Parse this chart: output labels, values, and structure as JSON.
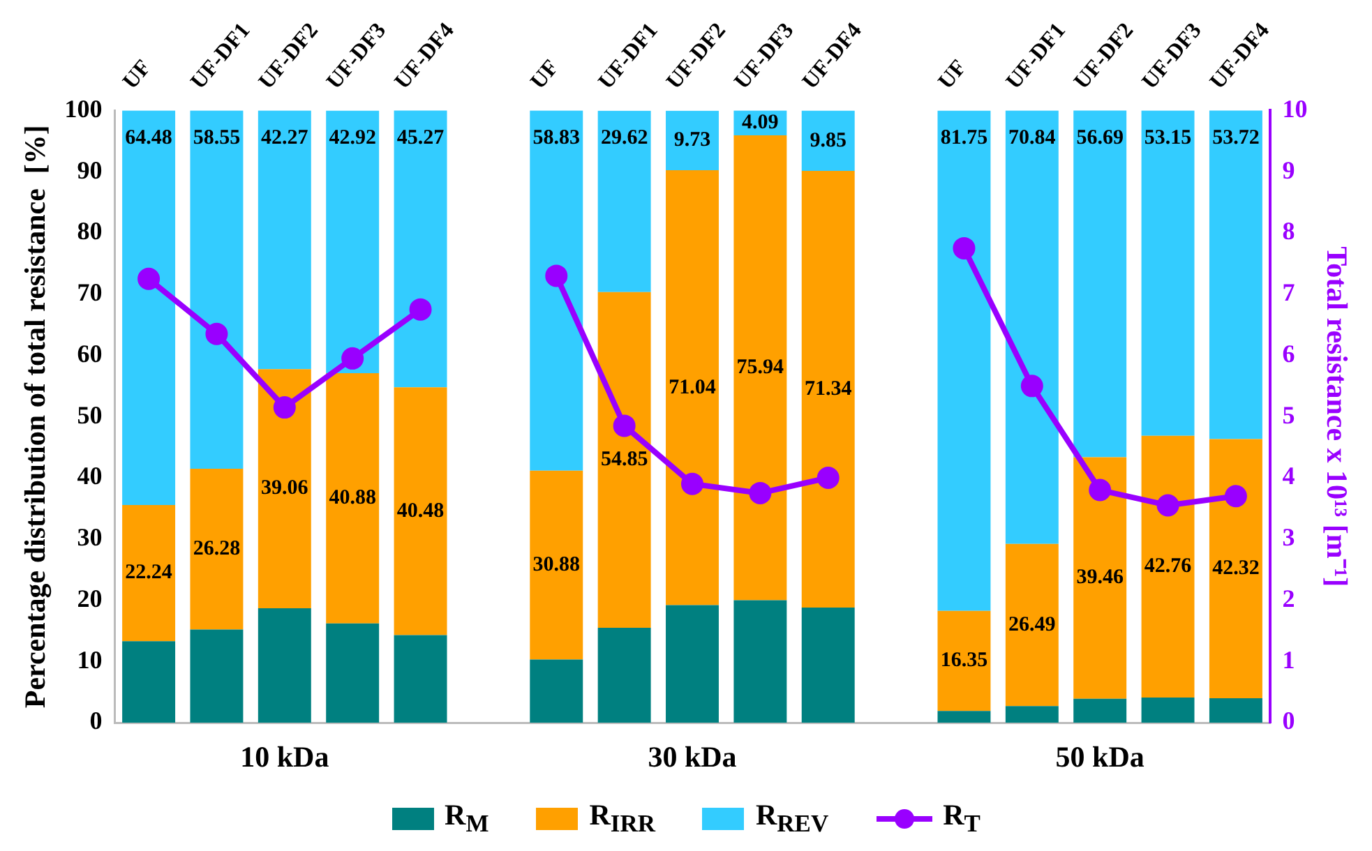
{
  "chart_data": {
    "type": "bar",
    "stacked": true,
    "categories": [
      "UF",
      "UF-DF1",
      "UF-DF2",
      "UF-DF3",
      "UF-DF4",
      null,
      "UF",
      "UF-DF1",
      "UF-DF2",
      "UF-DF3",
      "UF-DF4",
      null,
      "UF",
      "UF-DF1",
      "UF-DF2",
      "UF-DF3",
      "UF-DF4"
    ],
    "series": [
      {
        "name": "R$_{M}$",
        "color": "#008080",
        "values": [
          13.3,
          15.2,
          18.7,
          16.2,
          14.3,
          null,
          10.3,
          15.5,
          19.2,
          20.0,
          18.8,
          null,
          1.9,
          2.7,
          3.9,
          4.1,
          4.0
        ]
      },
      {
        "name": "R$_{IRR}$",
        "color": "#ffa000",
        "values": [
          22.24,
          26.28,
          39.06,
          40.88,
          40.48,
          null,
          30.88,
          54.85,
          71.04,
          75.94,
          71.34,
          null,
          16.35,
          26.49,
          39.46,
          42.76,
          42.32
        ],
        "value_labels": [
          "22.24",
          "26.28",
          "39.06",
          "40.88",
          "40.48",
          null,
          "30.88",
          "54.85",
          "71.04",
          "75.94",
          "71.34",
          null,
          "16.35",
          "26.49",
          "39.46",
          "42.76",
          "42.32"
        ]
      },
      {
        "name": "R$_{REV}$",
        "color": "#33ccff",
        "values": [
          64.48,
          58.55,
          42.27,
          42.92,
          45.27,
          null,
          58.83,
          29.62,
          9.73,
          4.09,
          9.85,
          null,
          81.75,
          70.84,
          56.69,
          53.15,
          53.72
        ],
        "value_labels": [
          "64.48",
          "58.55",
          "42.27",
          "42.92",
          "45.27",
          null,
          "58.83",
          "29.62",
          "9.73",
          "4.09",
          "9.85",
          null,
          "81.75",
          "70.84",
          "56.69",
          "53.15",
          "53.72"
        ]
      },
      {
        "name": "R$_{T}$",
        "type": "line",
        "axis": "y2",
        "color": "#9900ff",
        "values": [
          7.25,
          6.35,
          5.15,
          5.95,
          6.75,
          null,
          7.3,
          4.85,
          3.9,
          3.75,
          4.0,
          null,
          7.75,
          5.5,
          3.8,
          3.55,
          3.7
        ]
      }
    ],
    "ylabel": "Percentage distribution of total resistance  [%]",
    "y2label": "Total resistance x 10¹³ [m⁻¹]",
    "ylim": [
      0,
      100
    ],
    "yticks": [
      0,
      10,
      20,
      30,
      40,
      50,
      60,
      70,
      80,
      90,
      100
    ],
    "y2lim": [
      0,
      10
    ],
    "y2ticks": [
      0,
      1,
      2,
      3,
      4,
      5,
      6,
      7,
      8,
      9,
      10
    ],
    "annotations": [
      "10 kDa",
      "30 kDa",
      "50 kDa"
    ],
    "legend": "bottom",
    "marker": "circle",
    "line_style": "solid"
  }
}
